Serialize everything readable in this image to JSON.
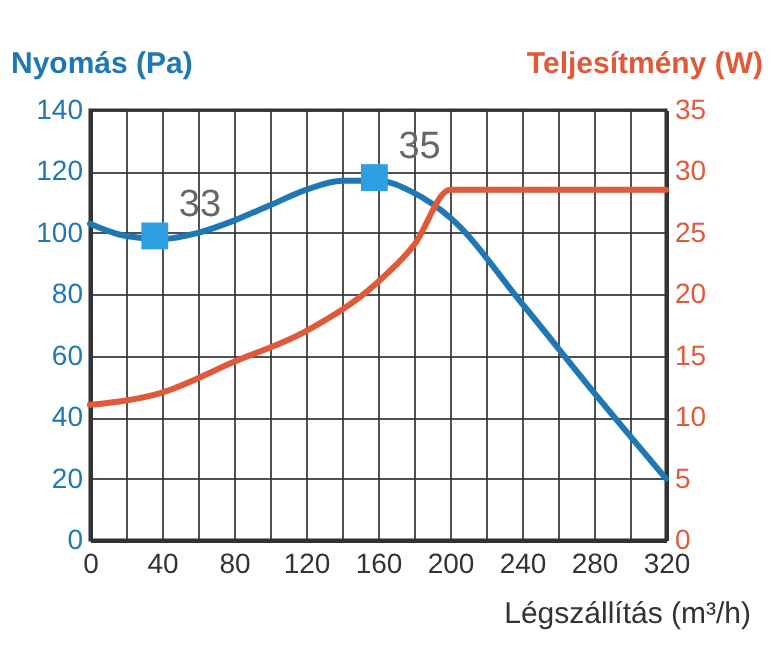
{
  "chart_data": {
    "type": "line",
    "xlabel": "Légszállítás (m³/h)",
    "ylabel": "Nyomás (Pa)",
    "y2label": "Teljesítmény (W)",
    "x": [
      0,
      20,
      40,
      60,
      80,
      100,
      120,
      140,
      160,
      180,
      200,
      240,
      280,
      320
    ],
    "series": [
      {
        "color": "#1f78b4",
        "values": [
          103,
          99,
          98,
          100,
          104,
          109,
          114,
          117,
          117,
          113,
          105,
          77,
          48,
          20
        ]
      },
      {
        "axis": "y2",
        "color": "#e05a3a",
        "x": [
          0,
          40,
          80,
          120,
          160,
          180,
          200,
          320
        ],
        "values": [
          11,
          12,
          14.5,
          17,
          21,
          24,
          28.5,
          28.5
        ]
      },
      {
        "type": "scatter",
        "marker": "square",
        "color": "#2e9fe0",
        "x": [
          36,
          158
        ],
        "values": [
          99,
          118
        ]
      }
    ],
    "annotations": [
      {
        "text": "33",
        "x": 36,
        "y": 99
      },
      {
        "text": "35",
        "x": 158,
        "y": 118
      }
    ],
    "xlim": [
      0,
      320
    ],
    "ylim": [
      0,
      140
    ],
    "y2lim": [
      0,
      35
    ],
    "xticks": [
      0,
      {
        "value": 20,
        "label": null
      },
      40,
      {
        "value": 60,
        "label": null
      },
      80,
      {
        "value": 100,
        "label": null
      },
      120,
      {
        "value": 140,
        "label": null
      },
      160,
      {
        "value": 180,
        "label": null
      },
      200,
      {
        "value": 220,
        "label": null
      },
      240,
      {
        "value": 260,
        "label": null
      },
      280,
      {
        "value": 300,
        "label": null
      },
      320
    ],
    "yticks": [
      0,
      20,
      40,
      60,
      80,
      100,
      120,
      140
    ],
    "y2ticks": [
      0,
      5,
      10,
      15,
      20,
      25,
      30,
      35
    ],
    "grid": true
  }
}
